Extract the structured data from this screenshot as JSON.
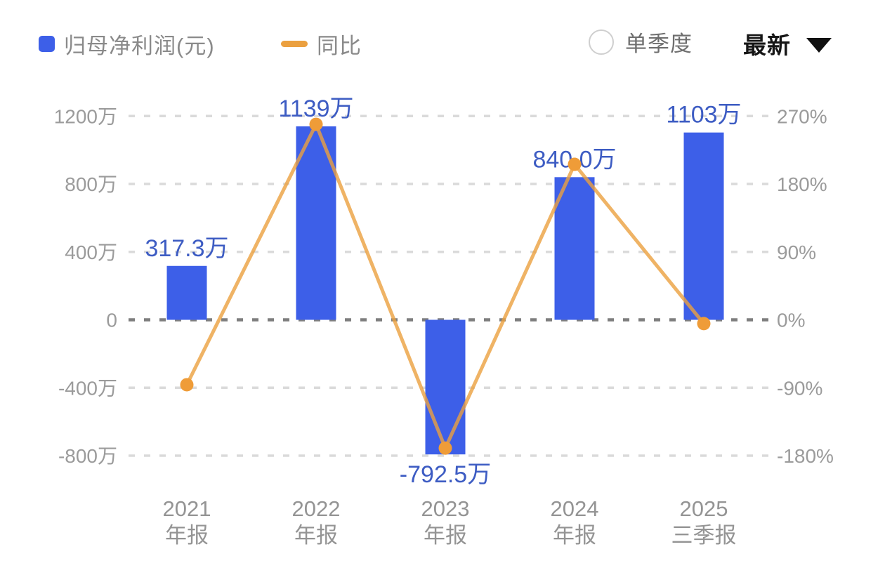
{
  "header": {
    "legend": [
      {
        "label": "归母净利润(元)",
        "marker": "square",
        "color": "#3D5FE8"
      },
      {
        "label": "同比",
        "marker": "dash",
        "color": "#EBA03F"
      }
    ],
    "controls": {
      "radio_label": "单季度",
      "radio_selected": false,
      "dropdown_value": "最新",
      "dropdown_icon": "caret-down"
    }
  },
  "chart_data": {
    "type": "bar+line",
    "categories": [
      {
        "year": "2021",
        "period": "年报"
      },
      {
        "year": "2022",
        "period": "年报"
      },
      {
        "year": "2023",
        "period": "年报"
      },
      {
        "year": "2024",
        "period": "年报"
      },
      {
        "year": "2025",
        "period": "三季报"
      }
    ],
    "series": [
      {
        "name": "归母净利润(元)",
        "type": "bar",
        "axis": "left",
        "unit": "万",
        "values": [
          317.3,
          1139,
          -792.5,
          840.0,
          1103
        ],
        "labels": [
          "317.3万",
          "1139万",
          "-792.5万",
          "840.0万",
          "1103万"
        ],
        "color": "#3D5FE8",
        "label_color": "#3D5CC3"
      },
      {
        "name": "同比",
        "type": "line",
        "axis": "right",
        "unit": "%",
        "values": [
          -86,
          259,
          -170,
          206,
          -5
        ],
        "color": "#EBA03F",
        "marker_color": "#EF9C38"
      }
    ],
    "left_axis": {
      "ticks": [
        "1200万",
        "800万",
        "400万",
        "0",
        "-400万",
        "-800万"
      ],
      "values": [
        1200,
        800,
        400,
        0,
        -400,
        -800
      ],
      "range": [
        -800,
        1200
      ]
    },
    "right_axis": {
      "ticks": [
        "270%",
        "180%",
        "90%",
        "0%",
        "-90%",
        "-180%"
      ],
      "values": [
        270,
        180,
        90,
        0,
        -90,
        -180
      ],
      "range": [
        -180,
        270
      ]
    },
    "grid": true,
    "legend_position": "top",
    "colors": {
      "grid_line": "#DADADA",
      "zero_line": "#7E7E7E",
      "axis_text": "#9B9B9B",
      "category_text": "#949494",
      "background": "#FFFFFF"
    }
  }
}
